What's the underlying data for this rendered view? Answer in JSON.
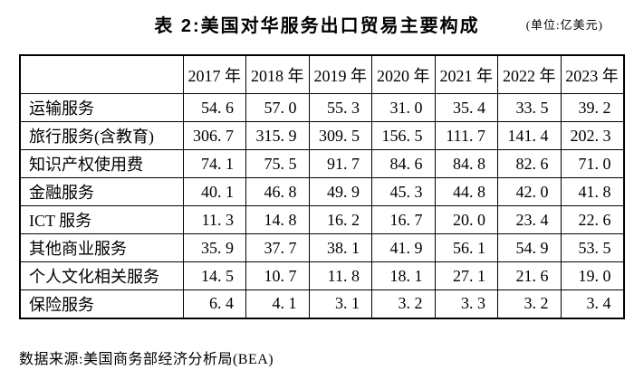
{
  "title": "表 2:美国对华服务出口贸易主要构成",
  "unit": "(单位:亿美元)",
  "source": "数据来源:美国商务部经济分析局(BEA)",
  "table": {
    "corner": "",
    "columns": [
      "2017 年",
      "2018 年",
      "2019 年",
      "2020 年",
      "2021 年",
      "2022 年",
      "2023 年"
    ],
    "rows": [
      {
        "label": "运输服务",
        "values": [
          "54.6",
          "57.0",
          "55.3",
          "31.0",
          "35.4",
          "33.5",
          "39.2"
        ]
      },
      {
        "label": "旅行服务(含教育)",
        "values": [
          "306.7",
          "315.9",
          "309.5",
          "156.5",
          "111.7",
          "141.4",
          "202.3"
        ]
      },
      {
        "label": "知识产权使用费",
        "values": [
          "74.1",
          "75.5",
          "91.7",
          "84.6",
          "84.8",
          "82.6",
          "71.0"
        ]
      },
      {
        "label": "金融服务",
        "values": [
          "40.1",
          "46.8",
          "49.9",
          "45.3",
          "44.8",
          "42.0",
          "41.8"
        ]
      },
      {
        "label": "ICT 服务",
        "values": [
          "11.3",
          "14.8",
          "16.2",
          "16.7",
          "20.0",
          "23.4",
          "22.6"
        ]
      },
      {
        "label": "其他商业服务",
        "values": [
          "35.9",
          "37.7",
          "38.1",
          "41.9",
          "56.1",
          "54.9",
          "53.5"
        ]
      },
      {
        "label": "个人文化相关服务",
        "values": [
          "14.5",
          "10.7",
          "11.8",
          "18.1",
          "27.1",
          "21.6",
          "19.0"
        ]
      },
      {
        "label": "保险服务",
        "values": [
          "6.4",
          "4.1",
          "3.1",
          "3.2",
          "3.3",
          "3.2",
          "3.4"
        ]
      }
    ]
  }
}
